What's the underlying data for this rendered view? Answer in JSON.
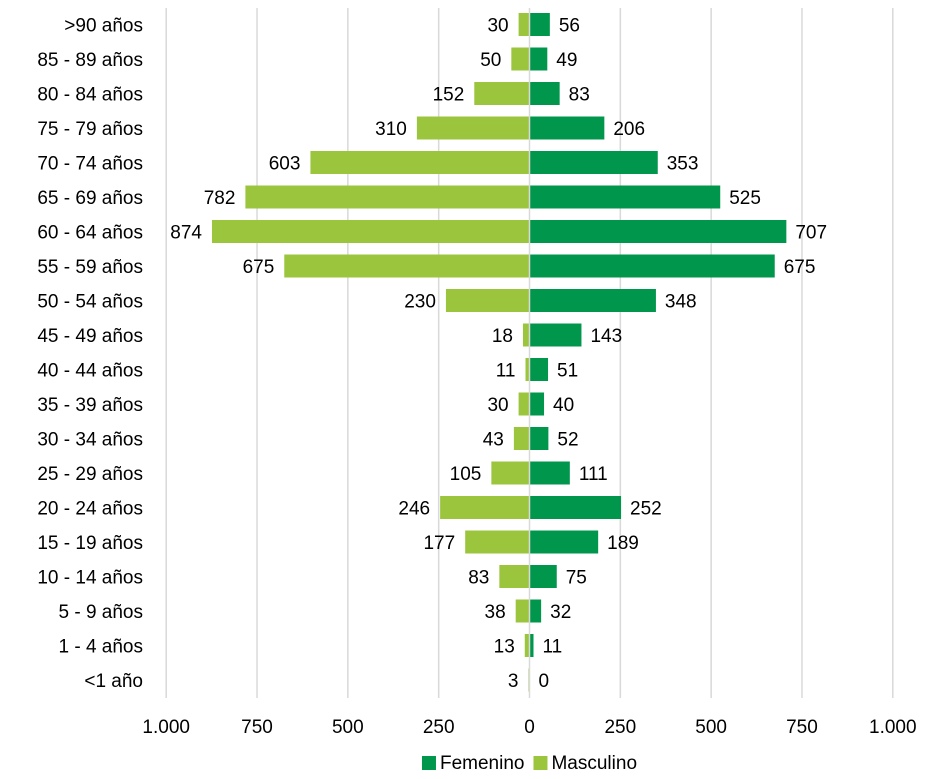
{
  "chart_data": {
    "type": "bar",
    "orientation": "horizontal",
    "layout": "population-pyramid",
    "categories": [
      ">90 años",
      "85 - 89 años",
      "80 - 84 años",
      "75 - 79 años",
      "70 - 74 años",
      "65 - 69 años",
      "60 - 64 años",
      "55 - 59 años",
      "50 - 54 años",
      "45 - 49 años",
      "40 - 44 años",
      "35 - 39 años",
      "30 - 34 años",
      "25 - 29 años",
      "20 - 24 años",
      "15 - 19 años",
      "10 - 14 años",
      "5 - 9 años",
      "1 - 4 años",
      "<1 año"
    ],
    "series": [
      {
        "name": "Femenino",
        "side": "right",
        "color": "#00964B",
        "values": [
          56,
          49,
          83,
          206,
          353,
          525,
          707,
          675,
          348,
          143,
          51,
          40,
          52,
          111,
          252,
          189,
          75,
          32,
          11,
          0
        ]
      },
      {
        "name": "Masculino",
        "side": "left",
        "color": "#9BC53D",
        "values": [
          30,
          50,
          152,
          310,
          603,
          782,
          874,
          675,
          230,
          18,
          11,
          30,
          43,
          105,
          246,
          177,
          83,
          38,
          13,
          3
        ]
      }
    ],
    "xlim": [
      -1000,
      1000
    ],
    "x_ticks": [
      -1000,
      -750,
      -500,
      -250,
      0,
      250,
      500,
      750,
      1000
    ],
    "x_tick_labels": [
      "1.000",
      "750",
      "500",
      "250",
      "0",
      "250",
      "500",
      "750",
      "1.000"
    ],
    "grid": "vertical",
    "legend_position": "bottom",
    "title": "",
    "xlabel": "",
    "ylabel": ""
  }
}
